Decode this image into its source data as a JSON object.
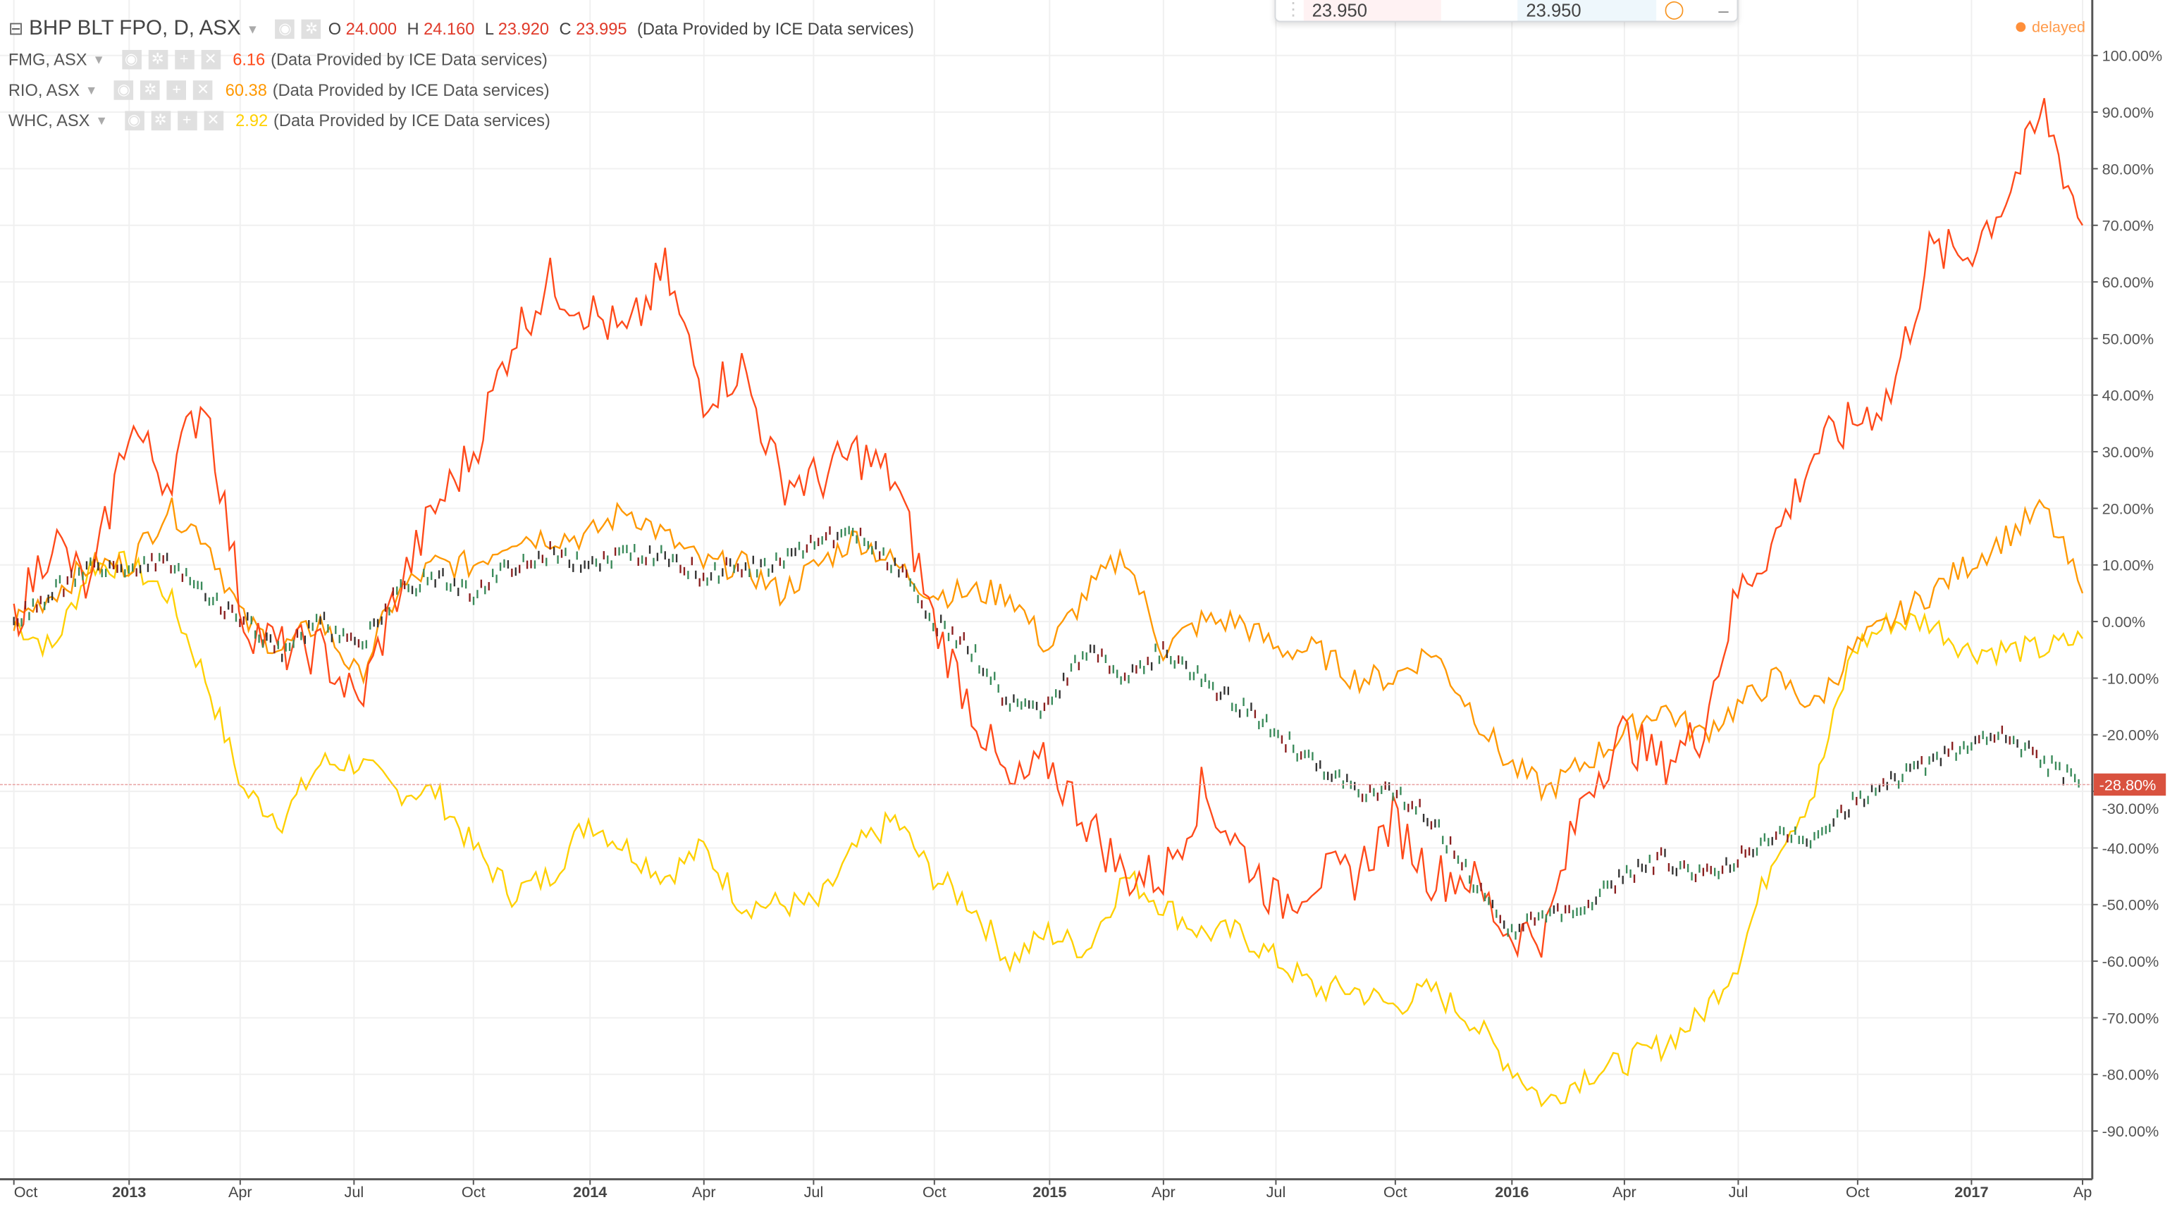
{
  "main_symbol": {
    "title": "BHP BLT FPO, D, ASX",
    "o_label": "O",
    "o": "24.000",
    "h_label": "H",
    "h": "24.160",
    "l_label": "L",
    "l": "23.920",
    "c_label": "C",
    "c": "23.995",
    "source": "(Data Provided by ICE Data services)"
  },
  "compare": [
    {
      "symbol": "FMG, ASX",
      "value": "6.16",
      "color": "#ff4a1a",
      "source": "(Data Provided by ICE Data services)"
    },
    {
      "symbol": "RIO, ASX",
      "value": "60.38",
      "color": "#ff9800",
      "source": "(Data Provided by ICE Data services)"
    },
    {
      "symbol": "WHC, ASX",
      "value": "2.92",
      "color": "#ffd000",
      "source": "(Data Provided by ICE Data services)"
    }
  ],
  "overlay": {
    "sell": "23.950",
    "buy": "23.950"
  },
  "status": "delayed",
  "price_label": "-28.80%",
  "chart_data": {
    "type": "line",
    "x_unit": "months since Oct 2012",
    "y_ticks": [
      "100.00%",
      "90.00%",
      "80.00%",
      "70.00%",
      "60.00%",
      "50.00%",
      "40.00%",
      "30.00%",
      "20.00%",
      "10.00%",
      "0.00%",
      "-10.00%",
      "-20.00%",
      "-30.00%",
      "-40.00%",
      "-50.00%",
      "-60.00%",
      "-70.00%",
      "-80.00%",
      "-90.00%"
    ],
    "ylim": [
      -95,
      105
    ],
    "x_ticks": [
      "Oct",
      "2013",
      "Apr",
      "Jul",
      "Oct",
      "2014",
      "Apr",
      "Jul",
      "Oct",
      "2015",
      "Apr",
      "Jul",
      "Oct",
      "2016",
      "Apr",
      "Jul",
      "Oct",
      "2017",
      "Ap"
    ],
    "series": [
      {
        "name": "FMG, ASX",
        "color": "#ff4a1a",
        "values": [
          0,
          15,
          5,
          35,
          25,
          40,
          0,
          -5,
          -5,
          -15,
          5,
          20,
          30,
          50,
          60,
          55,
          50,
          62,
          40,
          45,
          25,
          25,
          30,
          25,
          0,
          -15,
          -30,
          -25,
          -35,
          -45,
          -45,
          -30,
          -40,
          -50,
          -45,
          -45,
          -35,
          -45,
          -45,
          -55,
          -55,
          -30,
          -20,
          -25,
          -20,
          5,
          15,
          30,
          35,
          40,
          65,
          65,
          75,
          90,
          70
        ]
      },
      {
        "name": "RIO, ASX",
        "color": "#ff9800",
        "values": [
          0,
          5,
          10,
          10,
          20,
          15,
          0,
          -5,
          0,
          -10,
          5,
          10,
          10,
          15,
          15,
          15,
          20,
          15,
          10,
          10,
          5,
          10,
          15,
          10,
          5,
          5,
          5,
          -5,
          5,
          12,
          -5,
          0,
          0,
          -5,
          -5,
          -10,
          -10,
          -5,
          -15,
          -25,
          -30,
          -25,
          -20,
          -15,
          -20,
          -15,
          -10,
          -15,
          -5,
          0,
          5,
          10,
          15,
          20,
          5
        ]
      },
      {
        "name": "WHC, ASX",
        "color": "#ffd000",
        "values": [
          0,
          -5,
          10,
          10,
          5,
          -10,
          -30,
          -35,
          -25,
          -25,
          -30,
          -30,
          -40,
          -48,
          -45,
          -35,
          -40,
          -45,
          -40,
          -50,
          -50,
          -50,
          -40,
          -35,
          -45,
          -50,
          -60,
          -55,
          -58,
          -45,
          -50,
          -55,
          -55,
          -60,
          -65,
          -65,
          -68,
          -65,
          -70,
          -78,
          -85,
          -80,
          -78,
          -75,
          -70,
          -60,
          -40,
          -30,
          -5,
          0,
          0,
          -5,
          -5,
          -5,
          -3
        ]
      },
      {
        "name": "BHP BLT FPO",
        "type": "candles",
        "values": [
          0,
          5,
          10,
          10,
          10,
          5,
          0,
          -5,
          0,
          -5,
          5,
          8,
          5,
          10,
          12,
          10,
          12,
          12,
          8,
          10,
          10,
          15,
          15,
          10,
          0,
          -5,
          -15,
          -15,
          -5,
          -10,
          -5,
          -10,
          -15,
          -20,
          -25,
          -30,
          -30,
          -35,
          -45,
          -55,
          -52,
          -50,
          -45,
          -42,
          -45,
          -42,
          -38,
          -38,
          -32,
          -28,
          -25,
          -22,
          -20,
          -25,
          -29
        ]
      }
    ]
  }
}
